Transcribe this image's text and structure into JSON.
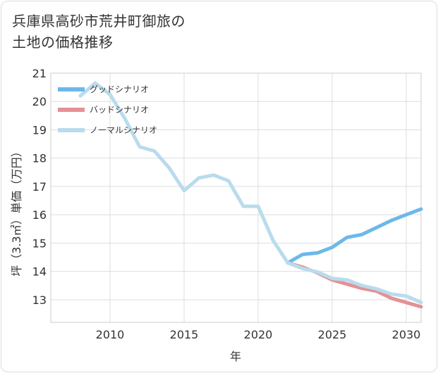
{
  "title_lines": [
    "兵庫県高砂市荒井町御旅の",
    "土地の価格推移"
  ],
  "chart_data": {
    "type": "line",
    "title": "兵庫県高砂市荒井町御旅の土地の価格推移",
    "xlabel": "年",
    "ylabel": "坪（3.3㎡）単価（万円）",
    "xlim": [
      2006,
      2031
    ],
    "ylim": [
      12.2,
      21
    ],
    "xticks": [
      2010,
      2015,
      2020,
      2025,
      2030
    ],
    "yticks": [
      13,
      14,
      15,
      16,
      17,
      18,
      19,
      20,
      21
    ],
    "grid": true,
    "legend_position": "top-left",
    "series": [
      {
        "name": "グッドシナリオ",
        "color": "#6db8ea",
        "x": [
          2022,
          2023,
          2024,
          2025,
          2026,
          2027,
          2028,
          2029,
          2030,
          2031
        ],
        "y": [
          14.3,
          14.6,
          14.65,
          14.85,
          15.2,
          15.3,
          15.55,
          15.8,
          16.0,
          16.2
        ]
      },
      {
        "name": "バッドシナリオ",
        "color": "#e39196",
        "x": [
          2022,
          2023,
          2024,
          2025,
          2026,
          2027,
          2028,
          2029,
          2030,
          2031
        ],
        "y": [
          14.3,
          14.15,
          13.95,
          13.7,
          13.55,
          13.4,
          13.3,
          13.05,
          12.9,
          12.75
        ]
      },
      {
        "name": "ノーマルシナリオ",
        "color": "#b9dcec",
        "x": [
          2008,
          2009,
          2010,
          2011,
          2012,
          2013,
          2014,
          2015,
          2016,
          2017,
          2018,
          2019,
          2020,
          2021,
          2022,
          2023,
          2024,
          2025,
          2026,
          2027,
          2028,
          2029,
          2030,
          2031
        ],
        "y": [
          20.2,
          20.65,
          20.25,
          19.4,
          18.4,
          18.25,
          17.65,
          16.85,
          17.3,
          17.4,
          17.2,
          16.3,
          16.3,
          15.1,
          14.3,
          14.1,
          13.98,
          13.75,
          13.7,
          13.5,
          13.38,
          13.2,
          13.13,
          12.9
        ]
      }
    ]
  }
}
